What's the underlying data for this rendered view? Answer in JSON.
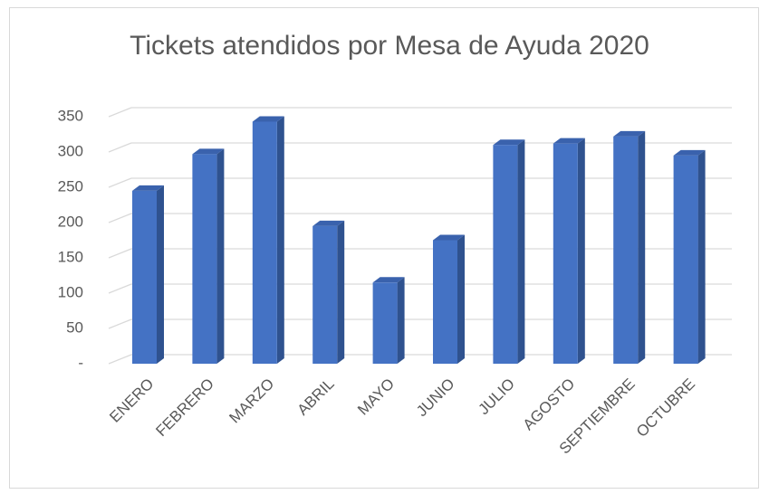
{
  "chart_data": {
    "type": "bar3d",
    "title": "Tickets atendidos por Mesa de Ayuda 2020",
    "categories": [
      "ENERO",
      "FEBRERO",
      "MARZO",
      "ABRIL",
      "MAYO",
      "JUNIO",
      "JULIO",
      "AGOSTO",
      "SEPTIEMBRE",
      "OCTUBRE"
    ],
    "values": [
      245,
      297,
      343,
      195,
      115,
      175,
      310,
      312,
      322,
      295
    ],
    "color": "#4472c4",
    "ylim": [
      0,
      350
    ],
    "yticks": [
      {
        "value": 0,
        "label": "-"
      },
      50,
      100,
      150,
      200,
      250,
      300,
      350
    ],
    "grid": true
  }
}
